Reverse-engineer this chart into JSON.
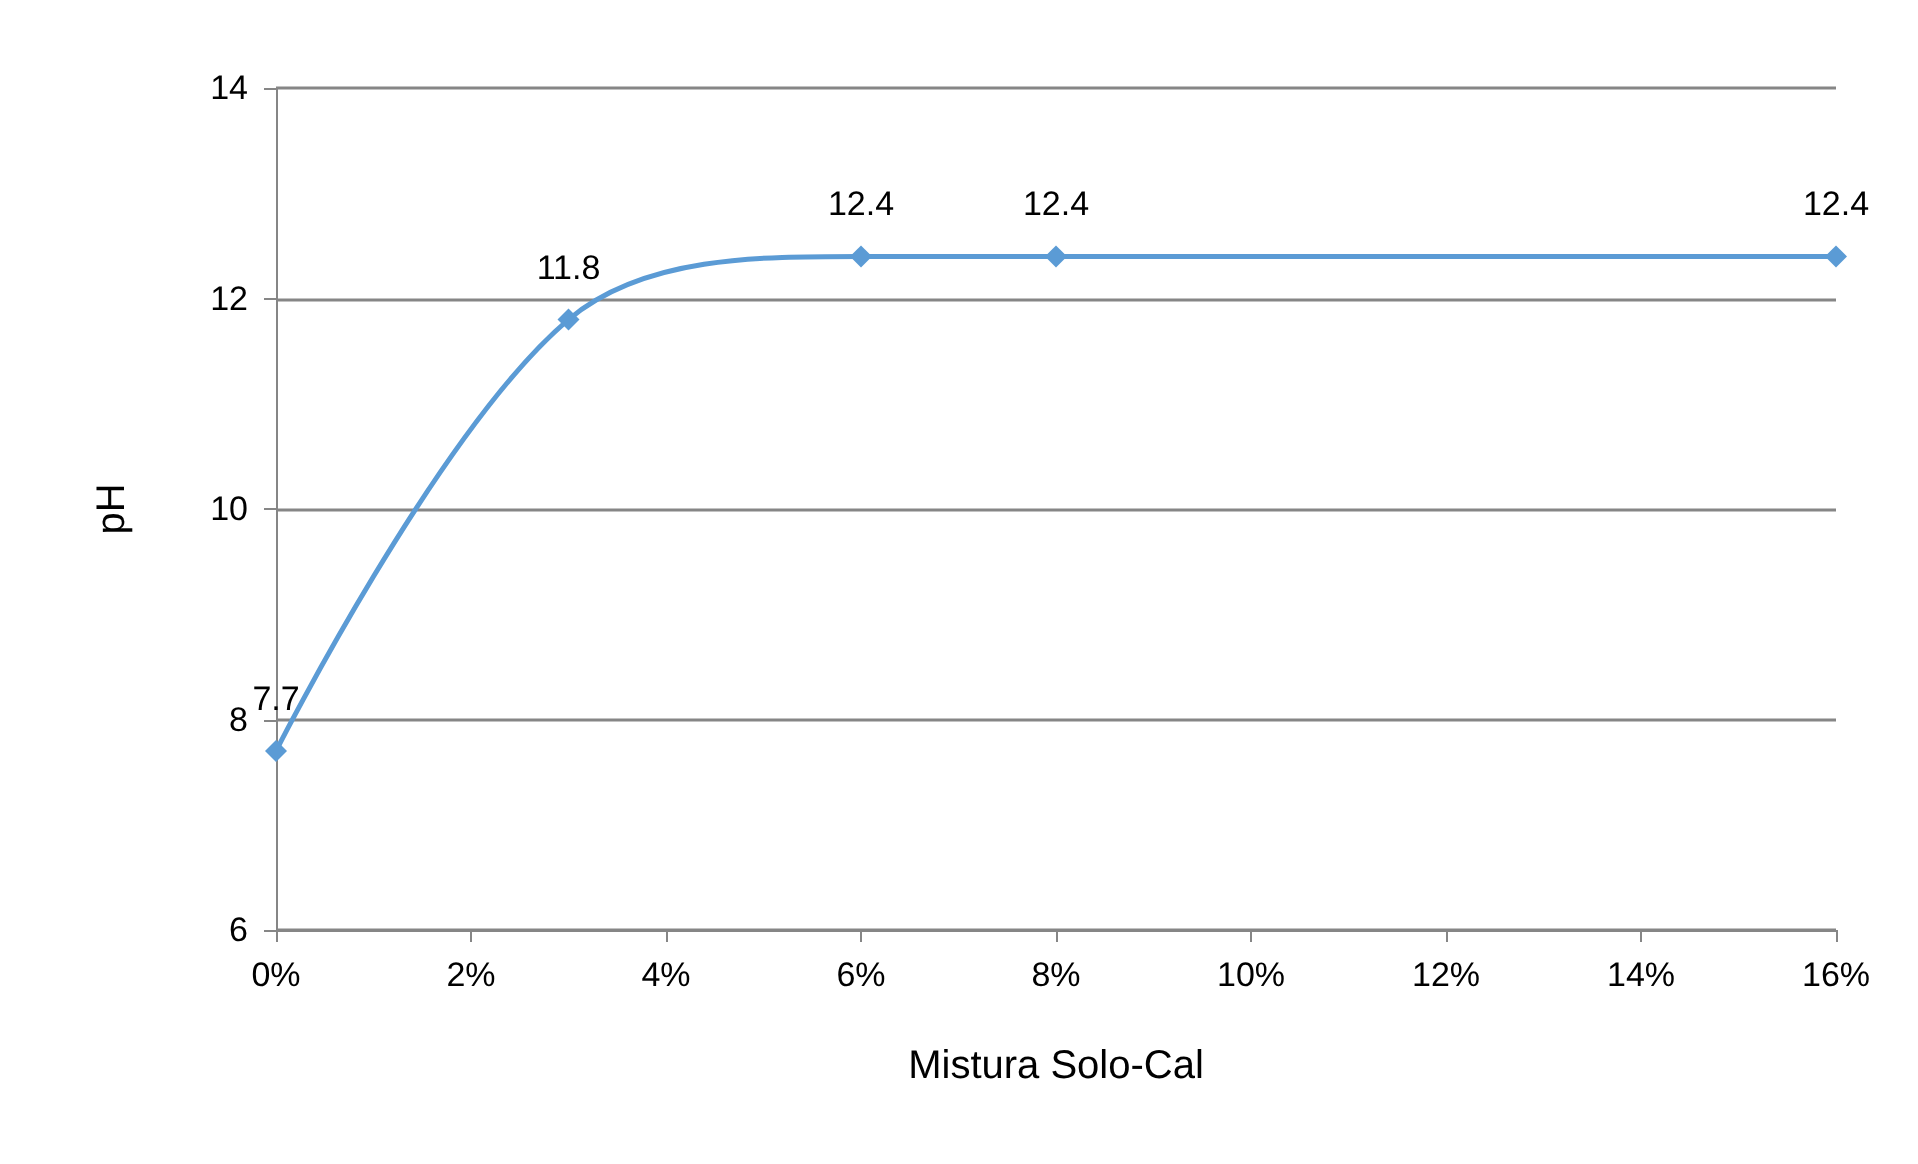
{
  "chart_data": {
    "type": "line",
    "xlabel": "Mistura Solo-Cal",
    "ylabel": "pH",
    "x": [
      0,
      3,
      6,
      8,
      16
    ],
    "series": [
      {
        "color": "#5b9bd5",
        "values": [
          7.7,
          11.8,
          12.4,
          12.4,
          12.4
        ]
      }
    ],
    "xlim": [
      0,
      16
    ],
    "xticks": [
      {
        "value": 0,
        "label": "0%"
      },
      {
        "value": 2,
        "label": "2%"
      },
      {
        "value": 4,
        "label": "4%"
      },
      {
        "value": 6,
        "label": "6%"
      },
      {
        "value": 8,
        "label": "8%"
      },
      {
        "value": 10,
        "label": "10%"
      },
      {
        "value": 12,
        "label": "12%"
      },
      {
        "value": 14,
        "label": "14%"
      },
      {
        "value": 16,
        "label": "16%"
      }
    ],
    "ylim": [
      6,
      14
    ],
    "yticks": [
      6,
      8,
      10,
      12,
      14
    ],
    "grid": "y",
    "marker": "diamond",
    "line_style": "solid",
    "data_labels": true
  }
}
